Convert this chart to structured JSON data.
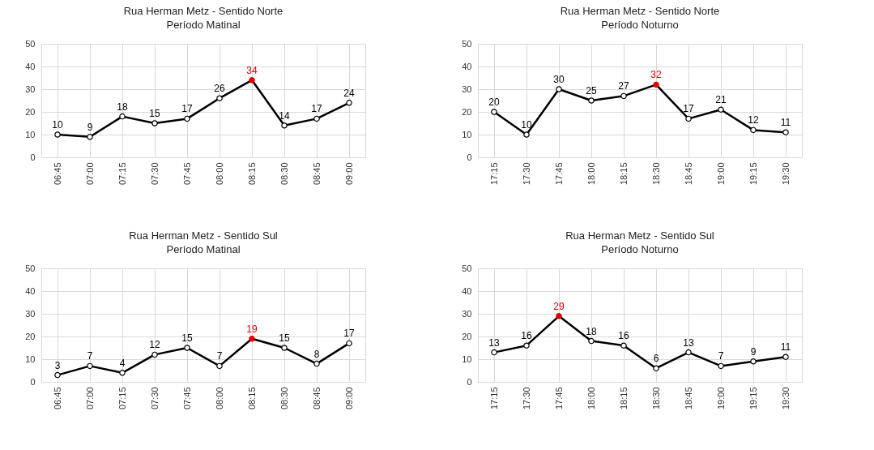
{
  "chart_data": [
    {
      "type": "line",
      "title": "Rua Herman Metz - Sentido Norte",
      "subtitle": "Período Matinal",
      "categories": [
        "06:45",
        "07:00",
        "07:15",
        "07:30",
        "07:45",
        "08:00",
        "08:15",
        "08:30",
        "08:45",
        "09:00"
      ],
      "series": [
        {
          "color": "#000000",
          "colors": [
            "#000000",
            "#000000",
            "#000000",
            "#000000",
            "#000000",
            "#000000",
            "#e00000",
            "#000000",
            "#000000",
            "#000000"
          ],
          "values": [
            10,
            9,
            18,
            15,
            17,
            26,
            34,
            14,
            17,
            24
          ]
        }
      ],
      "ylim": [
        0,
        50
      ],
      "yticks": [
        0,
        10,
        20,
        30,
        40,
        50
      ],
      "grid": true,
      "marker": "circle",
      "data_labels": true
    },
    {
      "type": "line",
      "title": "Rua Herman Metz - Sentido Norte",
      "subtitle": "Período Noturno",
      "categories": [
        "17:15",
        "17:30",
        "17:45",
        "18:00",
        "18:15",
        "18:30",
        "18:45",
        "19:00",
        "19:15",
        "19:30"
      ],
      "series": [
        {
          "color": "#000000",
          "colors": [
            "#000000",
            "#000000",
            "#000000",
            "#000000",
            "#000000",
            "#e00000",
            "#000000",
            "#000000",
            "#000000",
            "#000000"
          ],
          "values": [
            20,
            10,
            30,
            25,
            27,
            32,
            17,
            21,
            12,
            11
          ]
        }
      ],
      "ylim": [
        0,
        50
      ],
      "yticks": [
        0,
        10,
        20,
        30,
        40,
        50
      ],
      "grid": true,
      "marker": "circle",
      "data_labels": true
    },
    {
      "type": "line",
      "title": "Rua Herman Metz - Sentido Sul",
      "subtitle": "Período Matinal",
      "categories": [
        "06:45",
        "07:00",
        "07:15",
        "07:30",
        "07:45",
        "08:00",
        "08:15",
        "08:30",
        "08:45",
        "09:00"
      ],
      "series": [
        {
          "color": "#000000",
          "colors": [
            "#000000",
            "#000000",
            "#000000",
            "#000000",
            "#000000",
            "#000000",
            "#e00000",
            "#000000",
            "#000000",
            "#000000"
          ],
          "values": [
            3,
            7,
            4,
            12,
            15,
            7,
            19,
            15,
            8,
            17
          ]
        }
      ],
      "ylim": [
        0,
        50
      ],
      "yticks": [
        0,
        10,
        20,
        30,
        40,
        50
      ],
      "grid": true,
      "marker": "circle",
      "data_labels": true
    },
    {
      "type": "line",
      "title": "Rua Herman Metz - Sentido Sul",
      "subtitle": "Período Noturno",
      "categories": [
        "17:15",
        "17:30",
        "17:45",
        "18:00",
        "18:15",
        "18:30",
        "18:45",
        "19:00",
        "19:15",
        "19:30"
      ],
      "series": [
        {
          "color": "#000000",
          "colors": [
            "#000000",
            "#000000",
            "#e00000",
            "#000000",
            "#000000",
            "#000000",
            "#000000",
            "#000000",
            "#000000",
            "#000000"
          ],
          "values": [
            13,
            16,
            29,
            18,
            16,
            6,
            13,
            7,
            9,
            11
          ]
        }
      ],
      "ylim": [
        0,
        50
      ],
      "yticks": [
        0,
        10,
        20,
        30,
        40,
        50
      ],
      "grid": true,
      "marker": "circle",
      "data_labels": true
    }
  ]
}
